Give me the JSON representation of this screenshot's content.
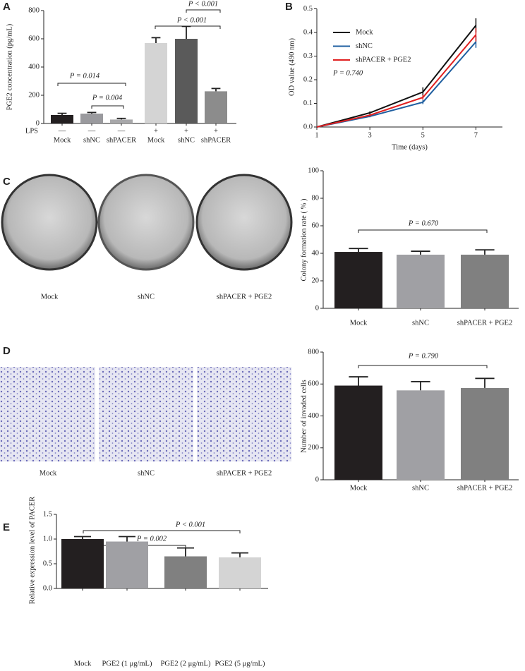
{
  "chart_data": [
    {
      "type": "bar",
      "panel": "A",
      "ylabel": "PGE2 concentration (pg/mL)",
      "group_label": "LPS",
      "group_marks": [
        "—",
        "—",
        "—",
        "+",
        "+",
        "+"
      ],
      "categories": [
        "Mock",
        "shNC",
        "shPACER",
        "Mock",
        "shNC",
        "shPACER"
      ],
      "values": [
        60,
        70,
        28,
        570,
        600,
        228
      ],
      "errors": [
        12,
        8,
        8,
        38,
        88,
        20
      ],
      "colors": [
        "#231f20",
        "#9a9a9e",
        "#a8a8aa",
        "#d4d4d4",
        "#5a5a5a",
        "#8c8c8c"
      ],
      "ylim": [
        0,
        800
      ],
      "yticks": [
        0,
        200,
        400,
        600,
        800
      ],
      "annotations": [
        "P = 0.014",
        "P = 0.004",
        "P < 0.001",
        "P < 0.001"
      ]
    },
    {
      "type": "line",
      "panel": "B",
      "ylabel": "OD value (490 nm)",
      "xlabel": "Time (days)",
      "x": [
        1,
        3,
        5,
        7
      ],
      "xlim": [
        1,
        8
      ],
      "xticks": [
        1,
        3,
        5,
        7
      ],
      "ylim": [
        0,
        0.5
      ],
      "yticks": [
        {
          "value": 0,
          "label": "0.0"
        },
        0.1,
        0.2,
        0.3,
        0.4,
        0.5
      ],
      "series": [
        {
          "name": "Mock",
          "color": "#111111",
          "values": [
            0,
            0.06,
            0.148,
            0.43
          ],
          "errors": [
            0,
            0.006,
            0.02,
            0.03
          ]
        },
        {
          "name": "shNC",
          "color": "#1f5fa0",
          "values": [
            0,
            0.045,
            0.105,
            0.36
          ],
          "errors": [
            0,
            0.004,
            0.008,
            0.025
          ]
        },
        {
          "name": "shPACER + PGE2",
          "color": "#e02020",
          "values": [
            0,
            0.05,
            0.125,
            0.39
          ],
          "errors": [
            0,
            0.005,
            0.01,
            0.028
          ]
        }
      ],
      "annotations": [
        "P = 0.740"
      ]
    },
    {
      "type": "bar",
      "panel": "C",
      "ylabel": "Colony formation rate ( % )",
      "categories": [
        "Mock",
        "shNC",
        "shPACER + PGE2"
      ],
      "values": [
        41,
        39,
        39
      ],
      "errors": [
        2.5,
        2.5,
        3.5
      ],
      "colors": [
        "#231f20",
        "#a0a0a4",
        "#808080"
      ],
      "ylim": [
        0,
        100
      ],
      "yticks": [
        0,
        20,
        40,
        60,
        80,
        100
      ],
      "annotations": [
        "P = 0.670"
      ]
    },
    {
      "type": "bar",
      "panel": "D",
      "ylabel": "Number of  invaded cells",
      "categories": [
        "Mock",
        "shNC",
        "shPACER + PGE2"
      ],
      "values": [
        590,
        560,
        575
      ],
      "errors": [
        55,
        55,
        60
      ],
      "colors": [
        "#231f20",
        "#a0a0a4",
        "#808080"
      ],
      "ylim": [
        0,
        800
      ],
      "yticks": [
        0,
        200,
        400,
        600,
        800
      ],
      "annotations": [
        "P = 0.790"
      ]
    },
    {
      "type": "bar",
      "panel": "E",
      "ylabel": "Relative expression level of  PACER",
      "categories": [
        "Mock",
        "PGE2 (1 μg/mL)",
        "PGE2 (2 μg/mL)",
        "PGE2 (5 μg/mL)"
      ],
      "values": [
        1.0,
        0.95,
        0.65,
        0.63
      ],
      "errors": [
        0.05,
        0.1,
        0.17,
        0.09
      ],
      "colors": [
        "#231f20",
        "#a0a0a4",
        "#808080",
        "#d4d4d4"
      ],
      "ylim": [
        0,
        1.5
      ],
      "yticks": [
        {
          "value": 0,
          "label": "0.0"
        },
        0.5,
        {
          "value": 1,
          "label": "1.0"
        },
        {
          "value": 1.5,
          "label": "1.5"
        }
      ],
      "annotations": [
        "P = 0.002",
        "P < 0.001"
      ]
    }
  ]
}
